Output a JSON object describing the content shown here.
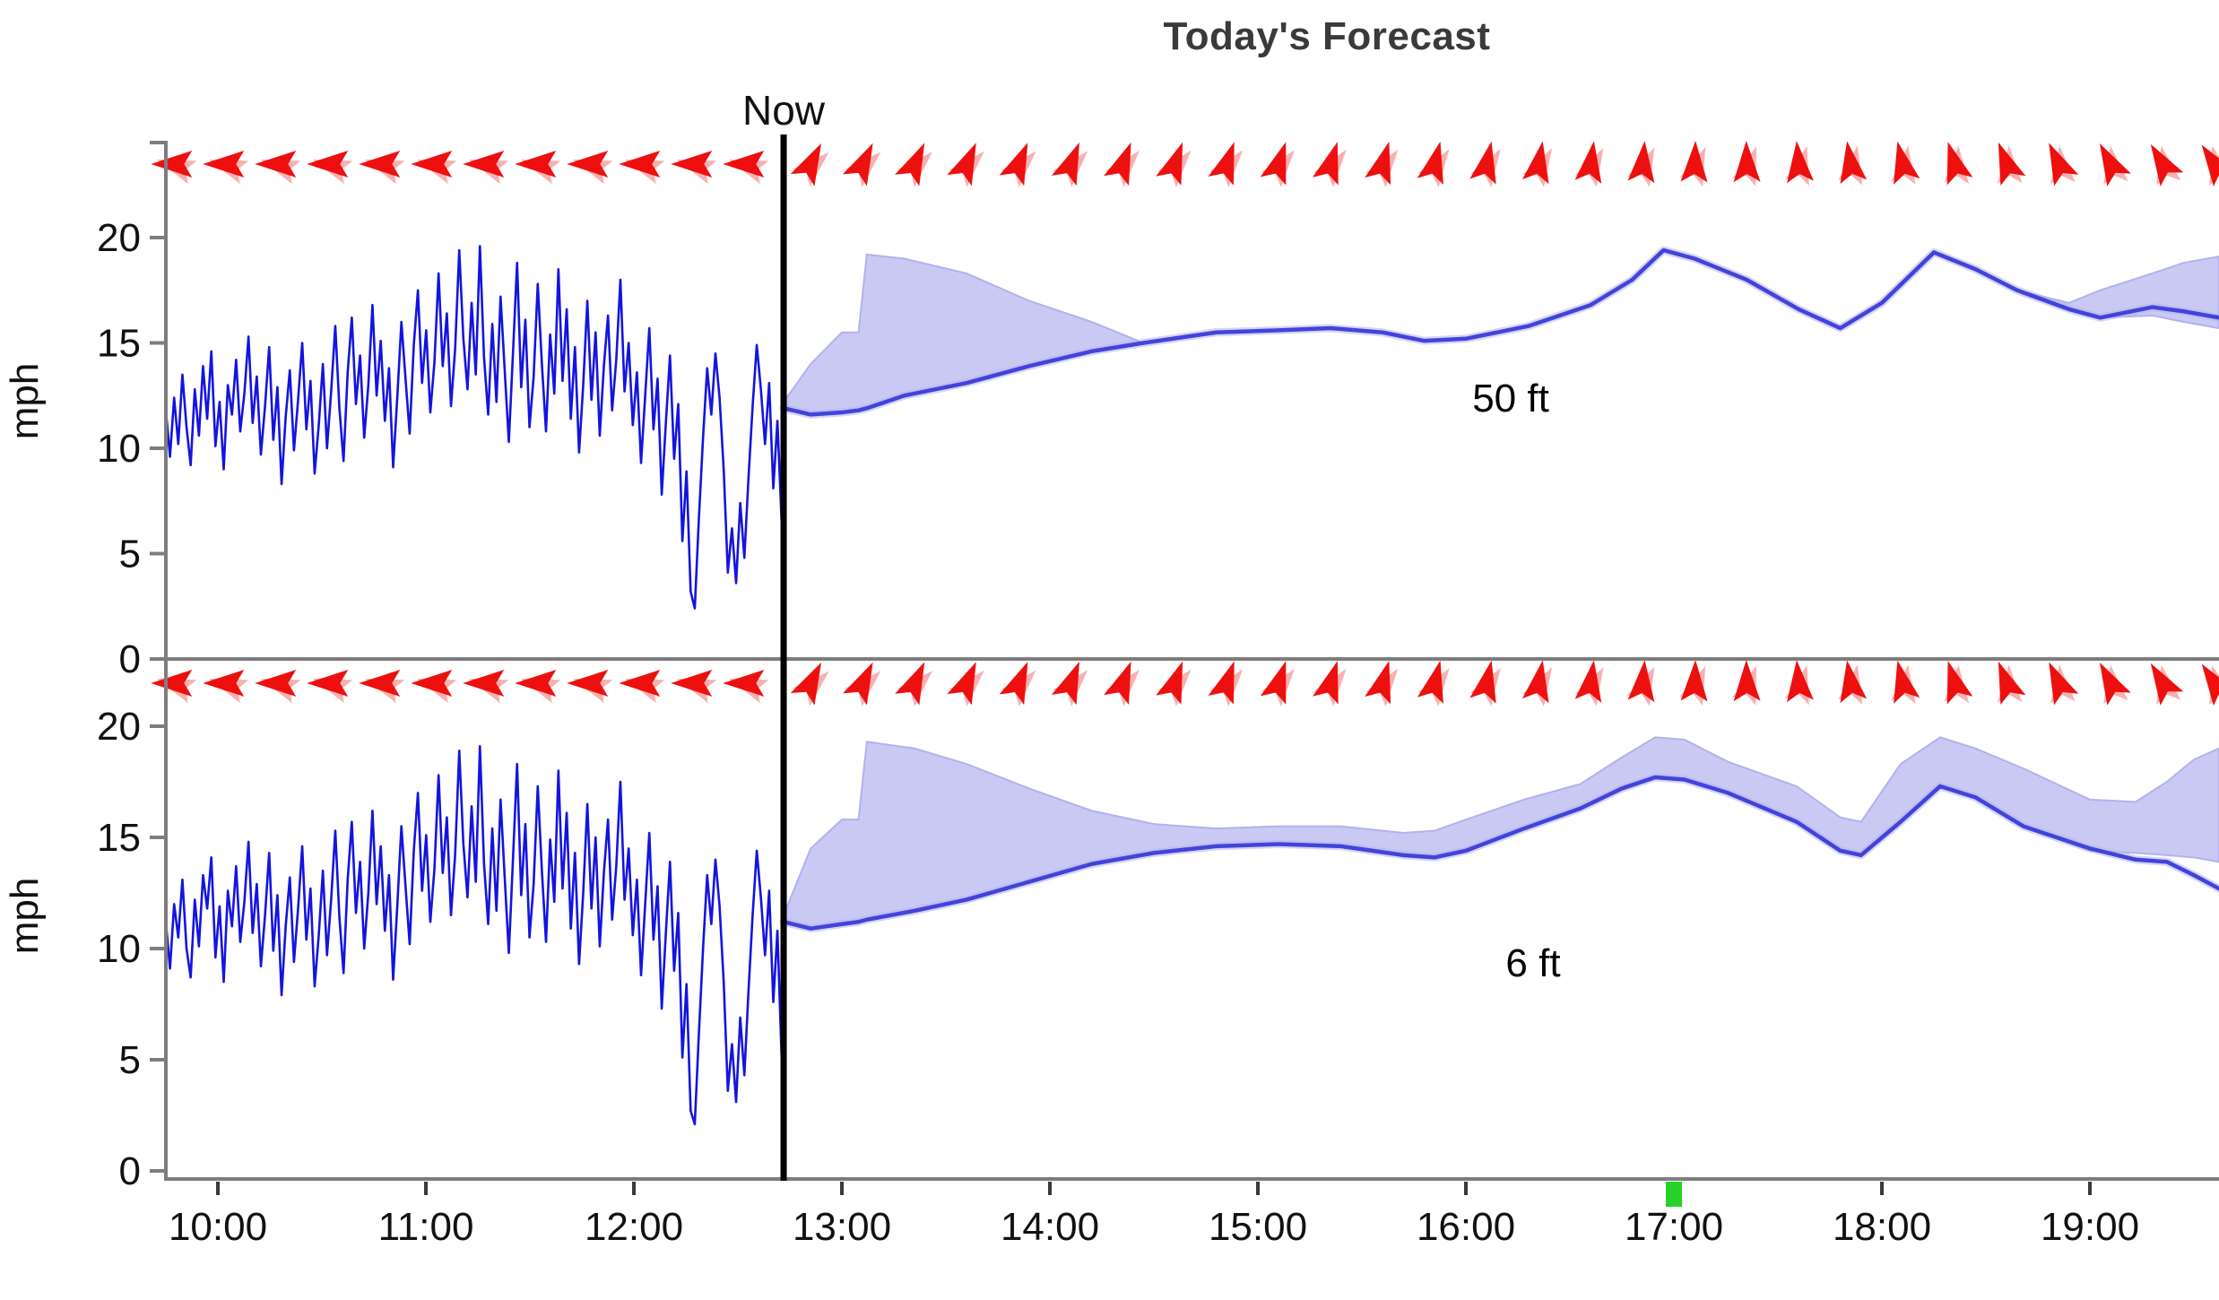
{
  "title": "Today's Forecast",
  "now_label": "Now",
  "colors": {
    "observed_line": "#1414e0",
    "forecast_median": "#4343db",
    "forecast_band_fill": "#c9c9f3",
    "forecast_band_edge": "#b2b2ee",
    "arrow_red": "#ee0f0f",
    "arrow_pink": "#f8b0b0",
    "axis_gray": "#7d7d7d",
    "tick_dark": "#3a3a3a",
    "text_black": "#111111",
    "now_line_black": "#000000",
    "green_marker": "#28d228"
  },
  "y_axis": {
    "unit": "mph",
    "tick_values": [
      0,
      5,
      10,
      15,
      20
    ]
  },
  "x_axis": {
    "tick_hours": [
      10,
      11,
      12,
      13,
      14,
      15,
      16,
      17,
      18,
      19
    ],
    "tick_labels": [
      "10:00",
      "11:00",
      "12:00",
      "13:00",
      "14:00",
      "15:00",
      "16:00",
      "17:00",
      "18:00",
      "19:00"
    ],
    "range_hours": [
      9.75,
      19.62
    ],
    "now_hour": 12.72,
    "green_marker_hour": 17.0
  },
  "wind_arrows": {
    "pre_now": {
      "hours": [
        9.79,
        10.04,
        10.29,
        10.54,
        10.79,
        11.04,
        11.29,
        11.54,
        11.79,
        12.04,
        12.29,
        12.54
      ],
      "angle_deg": [
        180,
        180,
        180,
        180,
        180,
        180,
        180,
        180,
        180,
        180,
        180,
        180
      ]
    },
    "post_now": {
      "hours": [
        12.85,
        13.1,
        13.35,
        13.6,
        13.85,
        14.1,
        14.35,
        14.6,
        14.85,
        15.1,
        15.35,
        15.6,
        15.85,
        16.1,
        16.35,
        16.6,
        16.85,
        17.1,
        17.35,
        17.6,
        17.85,
        18.1,
        18.35,
        18.6,
        18.85,
        19.1,
        19.35,
        19.6
      ],
      "angle_deg": [
        63,
        64,
        65,
        66,
        67,
        68,
        69,
        70,
        71,
        72,
        73,
        74,
        76,
        78,
        80,
        82,
        85,
        88,
        91,
        95,
        99,
        103,
        107,
        111,
        115,
        118,
        121,
        124
      ]
    }
  },
  "chart_data": [
    {
      "type": "line",
      "label": "50 ft",
      "ylabel": "mph",
      "ylim": [
        0,
        24.5
      ],
      "grid": false,
      "observed": {
        "x_start_hour": 9.75,
        "x_end_hour": 12.71,
        "values_mph": [
          11.8,
          9.6,
          12.4,
          10.2,
          13.5,
          11.0,
          9.2,
          12.8,
          10.6,
          13.9,
          11.4,
          14.6,
          10.1,
          12.2,
          9.0,
          13.0,
          11.6,
          14.2,
          10.8,
          12.6,
          15.3,
          11.2,
          13.4,
          9.7,
          12.0,
          14.8,
          10.4,
          12.9,
          8.3,
          11.5,
          13.7,
          9.9,
          12.3,
          15.0,
          10.9,
          13.2,
          8.8,
          11.1,
          14.0,
          10.0,
          12.7,
          15.8,
          11.9,
          9.4,
          13.6,
          16.2,
          12.1,
          14.4,
          10.5,
          13.0,
          16.8,
          12.5,
          15.1,
          11.3,
          13.8,
          9.1,
          12.4,
          16.0,
          13.3,
          10.7,
          14.9,
          17.5,
          13.1,
          15.6,
          11.7,
          14.1,
          18.3,
          13.9,
          16.4,
          12.0,
          14.7,
          19.4,
          15.2,
          12.8,
          16.9,
          13.5,
          19.6,
          14.3,
          11.6,
          15.9,
          12.2,
          17.2,
          13.7,
          10.3,
          14.5,
          18.8,
          12.9,
          16.1,
          11.0,
          13.4,
          17.8,
          14.0,
          10.8,
          15.4,
          12.6,
          18.5,
          13.2,
          16.6,
          11.4,
          14.8,
          9.8,
          13.0,
          17.0,
          12.3,
          15.5,
          10.6,
          13.9,
          16.3,
          11.8,
          14.2,
          18.0,
          12.7,
          15.0,
          11.1,
          13.6,
          9.3,
          12.5,
          15.7,
          10.9,
          13.3,
          7.8,
          11.2,
          14.4,
          9.5,
          12.1,
          5.6,
          8.9,
          3.2,
          2.4,
          6.7,
          10.5,
          13.8,
          11.6,
          14.5,
          12.4,
          9.0,
          4.1,
          6.2,
          3.6,
          7.4,
          4.8,
          8.6,
          12.0,
          14.9,
          12.8,
          10.2,
          13.1,
          8.1,
          11.3,
          6.6
        ]
      },
      "forecast": {
        "hours": [
          12.72,
          12.85,
          13.0,
          13.08,
          13.12,
          13.3,
          13.6,
          13.9,
          14.2,
          14.45,
          14.8,
          15.1,
          15.35,
          15.6,
          15.8,
          16.0,
          16.3,
          16.6,
          16.8,
          16.95,
          17.1,
          17.35,
          17.6,
          17.8,
          18.0,
          18.25,
          18.45,
          18.65,
          18.9,
          19.05,
          19.3,
          19.45,
          19.62
        ],
        "median_mph": [
          11.9,
          11.6,
          11.7,
          11.8,
          11.9,
          12.5,
          13.1,
          13.9,
          14.6,
          15.0,
          15.5,
          15.6,
          15.7,
          15.5,
          15.1,
          15.2,
          15.8,
          16.8,
          18.0,
          19.4,
          19.0,
          18.0,
          16.6,
          15.7,
          16.9,
          19.3,
          18.5,
          17.5,
          16.6,
          16.2,
          16.7,
          16.5,
          16.2
        ],
        "band_high_mph": [
          12.2,
          14.0,
          15.5,
          15.5,
          19.2,
          19.0,
          18.3,
          17.0,
          16.0,
          15.0,
          15.5,
          15.6,
          15.7,
          15.5,
          15.1,
          15.2,
          15.8,
          16.8,
          18.0,
          19.4,
          19.0,
          18.0,
          16.6,
          15.7,
          16.9,
          19.3,
          18.5,
          17.5,
          16.9,
          17.5,
          18.3,
          18.8,
          19.1
        ],
        "band_low_mph": [
          11.9,
          11.6,
          11.7,
          11.8,
          11.9,
          12.5,
          13.1,
          13.9,
          14.6,
          15.0,
          15.5,
          15.6,
          15.7,
          15.5,
          15.1,
          15.2,
          15.8,
          16.8,
          18.0,
          19.4,
          19.0,
          18.0,
          16.6,
          15.7,
          16.9,
          19.3,
          18.5,
          17.5,
          16.6,
          16.2,
          16.3,
          16.0,
          15.7
        ]
      }
    },
    {
      "type": "line",
      "label": "6 ft",
      "ylabel": "mph",
      "ylim": [
        0,
        22.9
      ],
      "grid": false,
      "observed": {
        "x_start_hour": 9.75,
        "x_end_hour": 12.71,
        "values_mph": [
          11.2,
          9.1,
          12.0,
          10.5,
          13.1,
          10.0,
          8.7,
          12.2,
          10.1,
          13.3,
          11.8,
          14.1,
          9.6,
          11.9,
          8.5,
          12.6,
          11.0,
          13.7,
          10.3,
          12.1,
          14.8,
          10.7,
          12.9,
          9.2,
          11.5,
          14.3,
          9.9,
          12.4,
          7.9,
          11.0,
          13.2,
          9.4,
          11.8,
          14.6,
          10.4,
          12.7,
          8.3,
          10.6,
          13.5,
          9.7,
          12.2,
          15.3,
          11.4,
          8.9,
          13.1,
          15.7,
          11.6,
          13.9,
          10.0,
          12.5,
          16.2,
          12.0,
          14.6,
          10.8,
          13.3,
          8.6,
          11.9,
          15.5,
          12.8,
          10.2,
          14.4,
          17.0,
          12.6,
          15.1,
          11.2,
          13.6,
          17.8,
          13.4,
          15.9,
          11.5,
          14.2,
          18.9,
          14.7,
          12.3,
          16.4,
          13.0,
          19.1,
          13.8,
          11.1,
          15.4,
          11.7,
          16.7,
          13.2,
          9.8,
          14.0,
          18.3,
          12.4,
          15.6,
          10.5,
          12.9,
          17.3,
          13.5,
          10.3,
          14.9,
          12.1,
          18.0,
          12.7,
          16.1,
          10.9,
          14.3,
          9.3,
          12.5,
          16.5,
          11.8,
          15.0,
          10.1,
          13.4,
          15.8,
          11.3,
          13.7,
          17.5,
          12.2,
          14.5,
          10.6,
          13.1,
          8.8,
          12.0,
          15.2,
          10.4,
          12.8,
          7.3,
          10.7,
          13.9,
          9.0,
          11.6,
          5.1,
          8.4,
          2.7,
          2.1,
          6.2,
          10.0,
          13.3,
          11.1,
          14.0,
          11.9,
          8.5,
          3.6,
          5.7,
          3.1,
          6.9,
          4.3,
          8.1,
          11.5,
          14.4,
          12.3,
          9.7,
          12.6,
          7.6,
          10.8,
          5.2
        ]
      },
      "forecast": {
        "hours": [
          12.72,
          12.85,
          13.0,
          13.08,
          13.12,
          13.35,
          13.6,
          13.9,
          14.2,
          14.5,
          14.8,
          15.1,
          15.4,
          15.7,
          15.85,
          16.0,
          16.28,
          16.55,
          16.75,
          16.91,
          17.05,
          17.26,
          17.59,
          17.8,
          17.9,
          18.09,
          18.28,
          18.45,
          18.68,
          19.0,
          19.22,
          19.37,
          19.5,
          19.62
        ],
        "median_mph": [
          11.2,
          10.9,
          11.1,
          11.2,
          11.3,
          11.7,
          12.2,
          13.0,
          13.8,
          14.3,
          14.6,
          14.7,
          14.6,
          14.2,
          14.1,
          14.4,
          15.4,
          16.3,
          17.2,
          17.7,
          17.6,
          17.0,
          15.7,
          14.4,
          14.2,
          15.7,
          17.3,
          16.8,
          15.5,
          14.5,
          14.0,
          13.9,
          13.3,
          12.7
        ],
        "band_high_mph": [
          11.5,
          14.5,
          15.8,
          15.8,
          19.3,
          19.0,
          18.3,
          17.2,
          16.2,
          15.6,
          15.4,
          15.5,
          15.5,
          15.2,
          15.3,
          15.8,
          16.7,
          17.4,
          18.6,
          19.5,
          19.4,
          18.4,
          17.3,
          15.9,
          15.7,
          18.3,
          19.5,
          19.0,
          18.1,
          16.7,
          16.6,
          17.5,
          18.5,
          19.0
        ],
        "band_low_mph": [
          11.2,
          10.9,
          11.1,
          11.2,
          11.3,
          11.7,
          12.2,
          13.0,
          13.8,
          14.3,
          14.6,
          14.7,
          14.6,
          14.2,
          14.1,
          14.4,
          15.4,
          16.3,
          17.2,
          17.7,
          17.6,
          17.0,
          15.7,
          14.4,
          14.2,
          15.7,
          17.3,
          16.8,
          15.5,
          14.4,
          14.3,
          14.2,
          14.1,
          13.9
        ]
      }
    }
  ]
}
